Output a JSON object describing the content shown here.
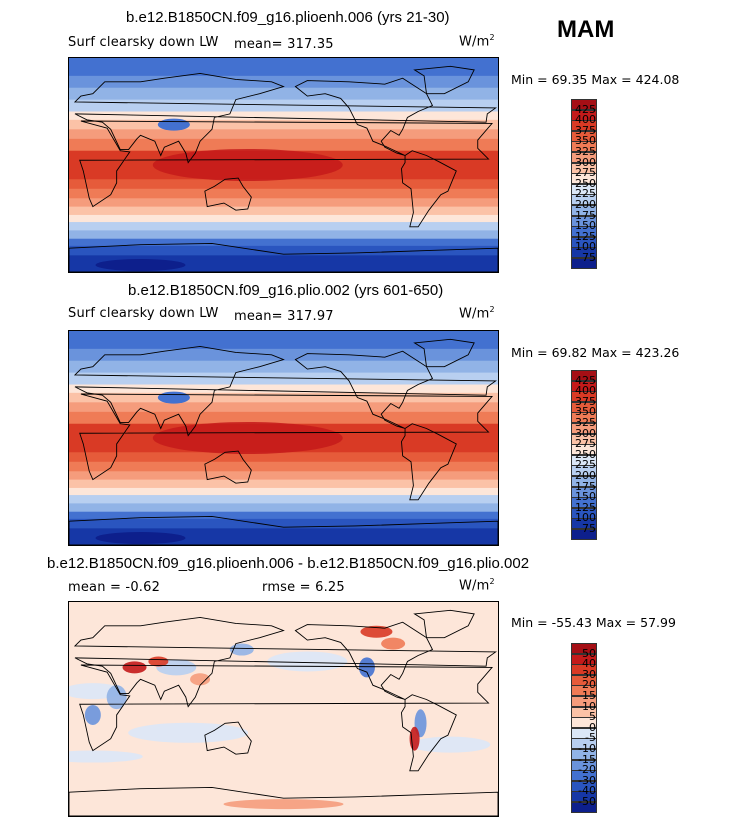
{
  "season": "MAM",
  "panels": [
    {
      "title": "b.e12.B1850CN.f09_g16.plioenh.006 (yrs 21-30)",
      "variable": "Surf clearsky down LW",
      "stat1": "mean=  317.35",
      "stat2": "",
      "units": "W/m",
      "units_sup": "2",
      "minmax": "Min =  69.35 Max = 424.08",
      "colorbar_labels": [
        "425",
        "400",
        "375",
        "350",
        "325",
        "300",
        "275",
        "250",
        "225",
        "200",
        "175",
        "150",
        "125",
        "100",
        "75"
      ],
      "colorbar_colors": [
        "#a50f15",
        "#c41a1a",
        "#d93a25",
        "#e65b3a",
        "#ef7b56",
        "#f59c7c",
        "#fbc2a7",
        "#fde6d9",
        "#dbe7f7",
        "#b8cff0",
        "#91b3e6",
        "#6a93dc",
        "#4371d0",
        "#2a55bf",
        "#1637a6",
        "#0d1f8c"
      ]
    },
    {
      "title": "b.e12.B1850CN.f09_g16.plio.002 (yrs 601-650)",
      "variable": "Surf clearsky down LW",
      "stat1": "mean=  317.97",
      "stat2": "",
      "units": "W/m",
      "units_sup": "2",
      "minmax": "Min =  69.82 Max = 423.26",
      "colorbar_labels": [
        "425",
        "400",
        "375",
        "350",
        "325",
        "300",
        "275",
        "250",
        "225",
        "200",
        "175",
        "150",
        "125",
        "100",
        "75"
      ],
      "colorbar_colors": [
        "#a50f15",
        "#c41a1a",
        "#d93a25",
        "#e65b3a",
        "#ef7b56",
        "#f59c7c",
        "#fbc2a7",
        "#fde6d9",
        "#dbe7f7",
        "#b8cff0",
        "#91b3e6",
        "#6a93dc",
        "#4371d0",
        "#2a55bf",
        "#1637a6",
        "#0d1f8c"
      ]
    },
    {
      "title": "b.e12.B1850CN.f09_g16.plioenh.006 - b.e12.B1850CN.f09_g16.plio.002",
      "variable": "",
      "stat1": "mean =  -0.62",
      "stat2": "rmse =    6.25",
      "units": "W/m",
      "units_sup": "2",
      "minmax": "Min = -55.43 Max =  57.99",
      "colorbar_labels": [
        "50",
        "40",
        "30",
        "20",
        "15",
        "10",
        "5",
        "0",
        "-5",
        "-10",
        "-15",
        "-20",
        "-30",
        "-40",
        "-50"
      ],
      "colorbar_colors": [
        "#a50f15",
        "#c41a1a",
        "#d93a25",
        "#e65b3a",
        "#ef7b56",
        "#f59c7c",
        "#fbc2a7",
        "#fde6d9",
        "#dbe7f7",
        "#b8cff0",
        "#91b3e6",
        "#6a93dc",
        "#4371d0",
        "#2a55bf",
        "#1637a6",
        "#0d1f8c"
      ]
    }
  ]
}
